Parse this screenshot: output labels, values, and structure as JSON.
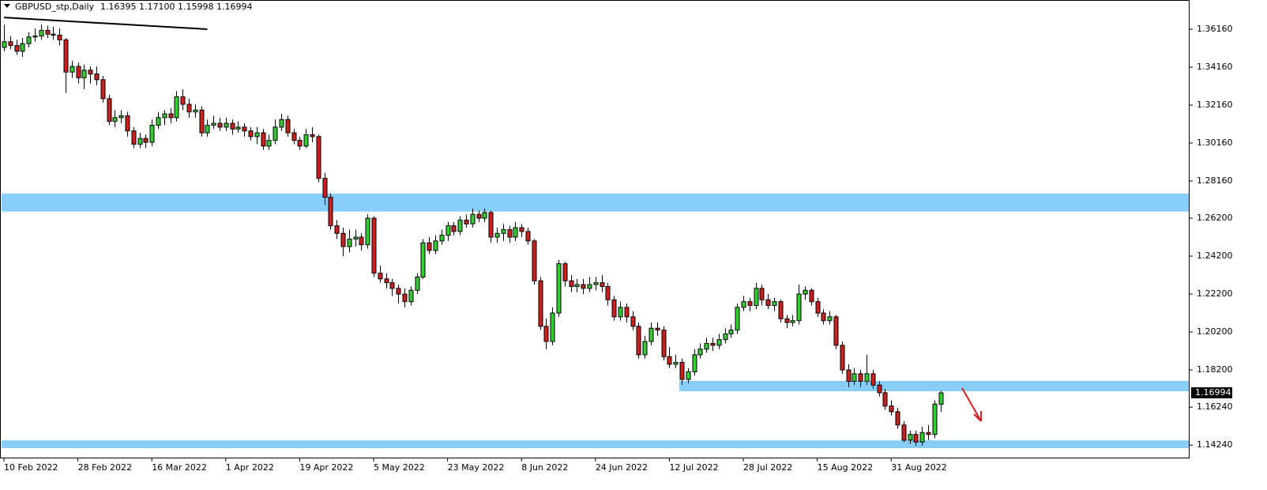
{
  "chart_data": {
    "type": "candlestick",
    "title": "GBPUSD_stp,Daily",
    "ohlc_label": "1.16395 1.17100 1.15998 1.16994",
    "colors": {
      "up": "#33cc33",
      "down": "#cc2020",
      "zone": "#87cefa",
      "trendline": "#000000"
    },
    "grid": false,
    "xlim": [
      -0.64,
      192.3
    ],
    "ylim": [
      1.1358,
      1.377
    ],
    "yticks": [
      {
        "value": 1.3616,
        "label": "1.36160"
      },
      {
        "value": 1.3416,
        "label": "1.34160"
      },
      {
        "value": 1.3216,
        "label": "1.32160"
      },
      {
        "value": 1.3016,
        "label": "1.30160"
      },
      {
        "value": 1.2816,
        "label": "1.28160"
      },
      {
        "value": 1.262,
        "label": "1.26200"
      },
      {
        "value": 1.242,
        "label": "1.24200"
      },
      {
        "value": 1.222,
        "label": "1.22200"
      },
      {
        "value": 1.202,
        "label": "1.20200"
      },
      {
        "value": 1.182,
        "label": "1.18200"
      },
      {
        "value": 1.1624,
        "label": "1.16240"
      },
      {
        "value": 1.1424,
        "label": "1.14240"
      }
    ],
    "xticks": [
      {
        "value": 0,
        "label": "10 Feb 2022"
      },
      {
        "value": 12,
        "label": "28 Feb 2022"
      },
      {
        "value": 24,
        "label": "16 Mar 2022"
      },
      {
        "value": 36,
        "label": "1 Apr 2022"
      },
      {
        "value": 48,
        "label": "19 Apr 2022"
      },
      {
        "value": 60,
        "label": "5 May 2022"
      },
      {
        "value": 72,
        "label": "23 May 2022"
      },
      {
        "value": 84,
        "label": "8 Jun 2022"
      },
      {
        "value": 96,
        "label": "24 Jun 2022"
      },
      {
        "value": 108,
        "label": "12 Jul 2022"
      },
      {
        "value": 120,
        "label": "28 Jul 2022"
      },
      {
        "value": 132,
        "label": "15 Aug 2022"
      },
      {
        "value": 144,
        "label": "31 Aug 2022"
      }
    ],
    "current_price": {
      "value": 1.16994,
      "label": "1.16994"
    },
    "zones": [
      {
        "x_start": 0,
        "top": 1.275,
        "bottom": 1.2655
      },
      {
        "x_start": 110,
        "top": 1.1762,
        "bottom": 1.1708
      },
      {
        "x_start": 0,
        "top": 1.1449,
        "bottom": 1.1408
      }
    ],
    "trendline": {
      "x": [
        0,
        33
      ],
      "y": [
        1.3678,
        1.3616
      ]
    },
    "candles": [
      [
        1.352,
        1.364,
        1.35,
        1.355
      ],
      [
        1.355,
        1.358,
        1.351,
        1.353
      ],
      [
        1.353,
        1.356,
        1.348,
        1.35
      ],
      [
        1.35,
        1.357,
        1.347,
        1.354
      ],
      [
        1.354,
        1.36,
        1.352,
        1.3575
      ],
      [
        1.3575,
        1.362,
        1.355,
        1.358
      ],
      [
        1.358,
        1.364,
        1.356,
        1.361
      ],
      [
        1.361,
        1.3635,
        1.357,
        1.359
      ],
      [
        1.359,
        1.363,
        1.356,
        1.3585
      ],
      [
        1.3585,
        1.362,
        1.353,
        1.356
      ],
      [
        1.356,
        1.357,
        1.328,
        1.339
      ],
      [
        1.339,
        1.345,
        1.336,
        1.342
      ],
      [
        1.342,
        1.344,
        1.333,
        1.336
      ],
      [
        1.336,
        1.343,
        1.33,
        1.34
      ],
      [
        1.34,
        1.342,
        1.333,
        1.338
      ],
      [
        1.338,
        1.342,
        1.332,
        1.335
      ],
      [
        1.335,
        1.337,
        1.323,
        1.325
      ],
      [
        1.325,
        1.327,
        1.311,
        1.313
      ],
      [
        1.313,
        1.319,
        1.31,
        1.315
      ],
      [
        1.315,
        1.319,
        1.312,
        1.316
      ],
      [
        1.316,
        1.318,
        1.305,
        1.308
      ],
      [
        1.308,
        1.31,
        1.299,
        1.301
      ],
      [
        1.301,
        1.307,
        1.299,
        1.304
      ],
      [
        1.304,
        1.306,
        1.299,
        1.302
      ],
      [
        1.302,
        1.314,
        1.3,
        1.311
      ],
      [
        1.311,
        1.318,
        1.309,
        1.315
      ],
      [
        1.315,
        1.319,
        1.311,
        1.317
      ],
      [
        1.317,
        1.32,
        1.312,
        1.315
      ],
      [
        1.315,
        1.329,
        1.313,
        1.326
      ],
      [
        1.326,
        1.33,
        1.319,
        1.322
      ],
      [
        1.322,
        1.325,
        1.315,
        1.318
      ],
      [
        1.318,
        1.322,
        1.315,
        1.319
      ],
      [
        1.319,
        1.321,
        1.305,
        1.307
      ],
      [
        1.307,
        1.314,
        1.305,
        1.311
      ],
      [
        1.311,
        1.316,
        1.309,
        1.312
      ],
      [
        1.312,
        1.315,
        1.308,
        1.31
      ],
      [
        1.31,
        1.315,
        1.308,
        1.312
      ],
      [
        1.312,
        1.314,
        1.306,
        1.309
      ],
      [
        1.309,
        1.313,
        1.307,
        1.31
      ],
      [
        1.31,
        1.312,
        1.305,
        1.308
      ],
      [
        1.308,
        1.31,
        1.303,
        1.305
      ],
      [
        1.305,
        1.31,
        1.301,
        1.307
      ],
      [
        1.307,
        1.309,
        1.298,
        1.3
      ],
      [
        1.3,
        1.306,
        1.298,
        1.303
      ],
      [
        1.303,
        1.314,
        1.301,
        1.31
      ],
      [
        1.31,
        1.317,
        1.308,
        1.314
      ],
      [
        1.314,
        1.316,
        1.305,
        1.307
      ],
      [
        1.307,
        1.309,
        1.301,
        1.303
      ],
      [
        1.303,
        1.305,
        1.298,
        1.3
      ],
      [
        1.3,
        1.309,
        1.299,
        1.306
      ],
      [
        1.306,
        1.31,
        1.302,
        1.305
      ],
      [
        1.305,
        1.306,
        1.281,
        1.283
      ],
      [
        1.283,
        1.286,
        1.269,
        1.273
      ],
      [
        1.273,
        1.275,
        1.256,
        1.258
      ],
      [
        1.258,
        1.261,
        1.251,
        1.254
      ],
      [
        1.254,
        1.257,
        1.242,
        1.247
      ],
      [
        1.247,
        1.256,
        1.244,
        1.251
      ],
      [
        1.251,
        1.256,
        1.247,
        1.252
      ],
      [
        1.252,
        1.254,
        1.245,
        1.248
      ],
      [
        1.248,
        1.264,
        1.246,
        1.262
      ],
      [
        1.262,
        1.263,
        1.231,
        1.233
      ],
      [
        1.233,
        1.237,
        1.228,
        1.23
      ],
      [
        1.23,
        1.233,
        1.225,
        1.228
      ],
      [
        1.228,
        1.23,
        1.221,
        1.225
      ],
      [
        1.225,
        1.227,
        1.217,
        1.222
      ],
      [
        1.222,
        1.225,
        1.215,
        1.218
      ],
      [
        1.218,
        1.226,
        1.216,
        1.224
      ],
      [
        1.224,
        1.233,
        1.222,
        1.231
      ],
      [
        1.231,
        1.251,
        1.23,
        1.249
      ],
      [
        1.249,
        1.252,
        1.243,
        1.245
      ],
      [
        1.245,
        1.253,
        1.243,
        1.25
      ],
      [
        1.25,
        1.256,
        1.248,
        1.253
      ],
      [
        1.253,
        1.26,
        1.25,
        1.258
      ],
      [
        1.258,
        1.26,
        1.253,
        1.255
      ],
      [
        1.255,
        1.263,
        1.253,
        1.261
      ],
      [
        1.261,
        1.264,
        1.257,
        1.259
      ],
      [
        1.259,
        1.267,
        1.257,
        1.264
      ],
      [
        1.264,
        1.266,
        1.26,
        1.262
      ],
      [
        1.262,
        1.267,
        1.26,
        1.265
      ],
      [
        1.265,
        1.266,
        1.249,
        1.252
      ],
      [
        1.252,
        1.257,
        1.249,
        1.254
      ],
      [
        1.254,
        1.259,
        1.25,
        1.256
      ],
      [
        1.256,
        1.258,
        1.249,
        1.252
      ],
      [
        1.252,
        1.26,
        1.25,
        1.257
      ],
      [
        1.257,
        1.259,
        1.252,
        1.255
      ],
      [
        1.255,
        1.257,
        1.248,
        1.25
      ],
      [
        1.25,
        1.251,
        1.227,
        1.229
      ],
      [
        1.229,
        1.231,
        1.203,
        1.205
      ],
      [
        1.205,
        1.209,
        1.193,
        1.197
      ],
      [
        1.197,
        1.215,
        1.195,
        1.212
      ],
      [
        1.212,
        1.24,
        1.21,
        1.238
      ],
      [
        1.238,
        1.239,
        1.226,
        1.229
      ],
      [
        1.229,
        1.232,
        1.223,
        1.226
      ],
      [
        1.226,
        1.23,
        1.223,
        1.227
      ],
      [
        1.227,
        1.23,
        1.222,
        1.225
      ],
      [
        1.225,
        1.231,
        1.223,
        1.227
      ],
      [
        1.227,
        1.231,
        1.224,
        1.228
      ],
      [
        1.228,
        1.232,
        1.223,
        1.226
      ],
      [
        1.226,
        1.228,
        1.216,
        1.219
      ],
      [
        1.219,
        1.221,
        1.208,
        1.21
      ],
      [
        1.21,
        1.218,
        1.208,
        1.215
      ],
      [
        1.215,
        1.217,
        1.207,
        1.21
      ],
      [
        1.21,
        1.213,
        1.203,
        1.205
      ],
      [
        1.205,
        1.207,
        1.188,
        1.19
      ],
      [
        1.19,
        1.2,
        1.188,
        1.197
      ],
      [
        1.197,
        1.207,
        1.195,
        1.204
      ],
      [
        1.204,
        1.207,
        1.2,
        1.203
      ],
      [
        1.203,
        1.205,
        1.187,
        1.189
      ],
      [
        1.189,
        1.194,
        1.183,
        1.185
      ],
      [
        1.185,
        1.19,
        1.183,
        1.186
      ],
      [
        1.186,
        1.188,
        1.174,
        1.177
      ],
      [
        1.177,
        1.183,
        1.175,
        1.181
      ],
      [
        1.181,
        1.193,
        1.179,
        1.19
      ],
      [
        1.19,
        1.196,
        1.188,
        1.193
      ],
      [
        1.193,
        1.199,
        1.191,
        1.196
      ],
      [
        1.196,
        1.199,
        1.192,
        1.195
      ],
      [
        1.195,
        1.201,
        1.193,
        1.198
      ],
      [
        1.198,
        1.204,
        1.196,
        1.201
      ],
      [
        1.201,
        1.206,
        1.199,
        1.203
      ],
      [
        1.203,
        1.217,
        1.201,
        1.215
      ],
      [
        1.215,
        1.221,
        1.213,
        1.218
      ],
      [
        1.218,
        1.22,
        1.213,
        1.216
      ],
      [
        1.216,
        1.228,
        1.214,
        1.225
      ],
      [
        1.225,
        1.227,
        1.216,
        1.219
      ],
      [
        1.219,
        1.222,
        1.214,
        1.216
      ],
      [
        1.216,
        1.22,
        1.213,
        1.218
      ],
      [
        1.218,
        1.219,
        1.207,
        1.209
      ],
      [
        1.209,
        1.211,
        1.204,
        1.207
      ],
      [
        1.207,
        1.211,
        1.205,
        1.208
      ],
      [
        1.208,
        1.227,
        1.206,
        1.222
      ],
      [
        1.222,
        1.226,
        1.219,
        1.224
      ],
      [
        1.224,
        1.225,
        1.216,
        1.218
      ],
      [
        1.218,
        1.22,
        1.21,
        1.212
      ],
      [
        1.212,
        1.214,
        1.206,
        1.208
      ],
      [
        1.208,
        1.213,
        1.206,
        1.21
      ],
      [
        1.21,
        1.211,
        1.193,
        1.195
      ],
      [
        1.195,
        1.197,
        1.18,
        1.182
      ],
      [
        1.182,
        1.185,
        1.173,
        1.176
      ],
      [
        1.176,
        1.183,
        1.174,
        1.18
      ],
      [
        1.18,
        1.182,
        1.173,
        1.176
      ],
      [
        1.176,
        1.19,
        1.174,
        1.18
      ],
      [
        1.18,
        1.182,
        1.172,
        1.174
      ],
      [
        1.174,
        1.176,
        1.168,
        1.17
      ],
      [
        1.17,
        1.172,
        1.161,
        1.163
      ],
      [
        1.163,
        1.166,
        1.158,
        1.16
      ],
      [
        1.16,
        1.162,
        1.151,
        1.153
      ],
      [
        1.153,
        1.155,
        1.144,
        1.145
      ],
      [
        1.145,
        1.15,
        1.143,
        1.148
      ],
      [
        1.148,
        1.15,
        1.142,
        1.144
      ],
      [
        1.144,
        1.152,
        1.142,
        1.149
      ],
      [
        1.149,
        1.153,
        1.145,
        1.148
      ],
      [
        1.148,
        1.166,
        1.146,
        1.164
      ],
      [
        1.16395,
        1.171,
        1.15998,
        1.16994
      ]
    ]
  }
}
